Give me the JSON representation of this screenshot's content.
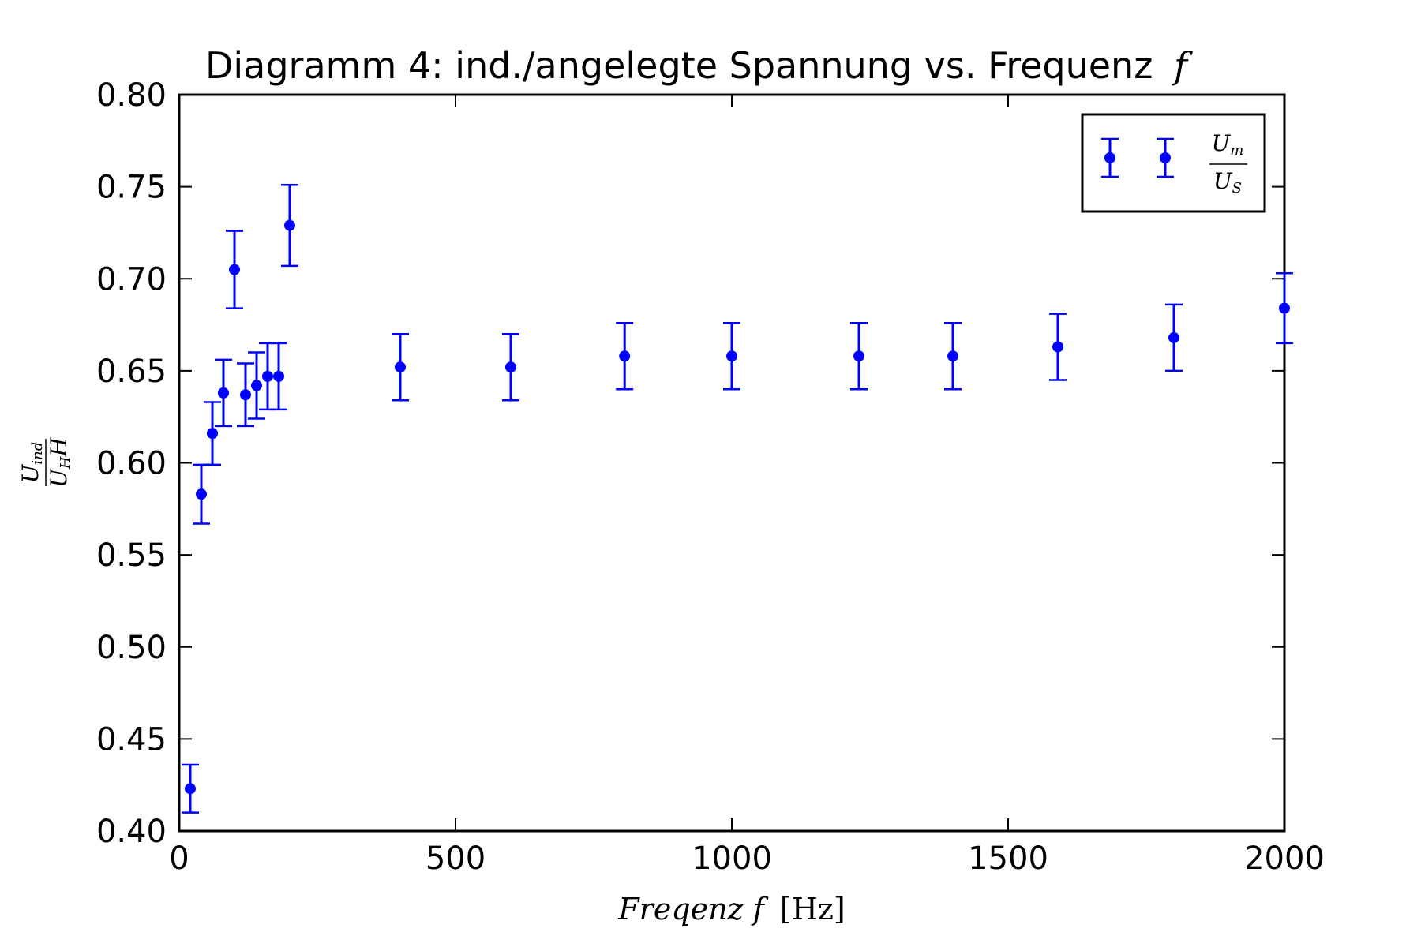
{
  "chart_data": {
    "type": "scatter",
    "title": "Diagramm 4: ind./angelegte Spannung vs. Frequenz",
    "title_math": "f",
    "xlabel": {
      "italic": "Freqenz f",
      "unit": "[Hz]"
    },
    "ylabel": {
      "numerator_main": "U",
      "numerator_sub": "ind",
      "denominator_main": "U",
      "denominator_sub": "H",
      "denominator_tail": "H"
    },
    "xlim": [
      0,
      2000
    ],
    "ylim": [
      0.4,
      0.8
    ],
    "xticks": [
      "0",
      "500",
      "1000",
      "1500",
      "2000"
    ],
    "yticks": [
      "0.40",
      "0.45",
      "0.50",
      "0.55",
      "0.60",
      "0.65",
      "0.70",
      "0.75",
      "0.80"
    ],
    "grid": false,
    "legend_position": "top-right",
    "color": "#0000ff",
    "legend": {
      "num_main": "U",
      "num_sub": "m",
      "den_main": "U",
      "den_sub": "S"
    },
    "series": [
      {
        "x": [
          20,
          40,
          60,
          80,
          100,
          120,
          140,
          160,
          180,
          200,
          400,
          600,
          806,
          1000,
          1230,
          1400,
          1590,
          1800,
          2000
        ],
        "y": [
          0.423,
          0.583,
          0.616,
          0.638,
          0.705,
          0.637,
          0.642,
          0.647,
          0.647,
          0.729,
          0.652,
          0.652,
          0.658,
          0.658,
          0.658,
          0.658,
          0.663,
          0.668,
          0.684
        ],
        "err": [
          0.013,
          0.016,
          0.017,
          0.018,
          0.021,
          0.017,
          0.018,
          0.018,
          0.018,
          0.022,
          0.018,
          0.018,
          0.018,
          0.018,
          0.018,
          0.018,
          0.018,
          0.018,
          0.019
        ]
      }
    ]
  }
}
